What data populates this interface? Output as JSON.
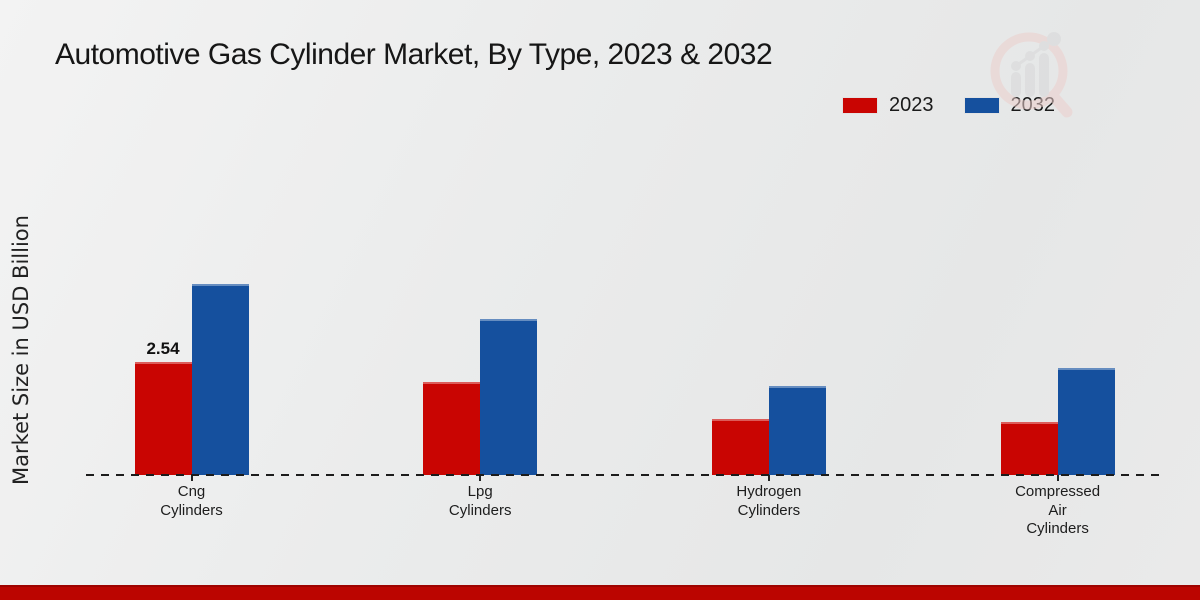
{
  "title": "Automotive Gas Cylinder Market, By Type, 2023 & 2032",
  "y_axis_label": "Market Size in USD Billion",
  "legend": {
    "items": [
      {
        "label": "2023",
        "color": "#c90502"
      },
      {
        "label": "2032",
        "color": "#15509e"
      }
    ]
  },
  "chart_data": {
    "type": "bar",
    "title": "Automotive Gas Cylinder Market, By Type, 2023 & 2032",
    "categories": [
      "Cng\nCylinders",
      "Lpg\nCylinders",
      "Hydrogen\nCylinders",
      "Compressed\nAir\nCylinders"
    ],
    "series": [
      {
        "name": "2023",
        "color": "#c90502",
        "values": [
          2.54,
          2.1,
          1.25,
          1.2
        ]
      },
      {
        "name": "2032",
        "color": "#15509e",
        "values": [
          4.3,
          3.5,
          2.0,
          2.4
        ]
      }
    ],
    "xlabel": "",
    "ylabel": "Market Size in USD Billion",
    "ylim": [
      0,
      5
    ],
    "grid": false,
    "legend_position": "top-right",
    "baseline_style": "dashed",
    "bar_value_labels": [
      {
        "series_index": 0,
        "category_index": 0,
        "text": "2.54"
      }
    ]
  },
  "footer": {
    "band_color": "#bb0500"
  },
  "watermark_name": "market-research-magnifier-logo"
}
